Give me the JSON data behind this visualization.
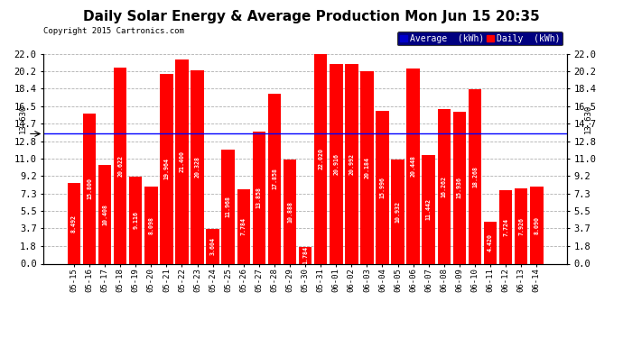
{
  "title": "Daily Solar Energy & Average Production Mon Jun 15 20:35",
  "copyright": "Copyright 2015 Cartronics.com",
  "categories": [
    "05-15",
    "05-16",
    "05-17",
    "05-18",
    "05-19",
    "05-20",
    "05-21",
    "05-22",
    "05-23",
    "05-24",
    "05-25",
    "05-26",
    "05-27",
    "05-28",
    "05-29",
    "05-30",
    "05-31",
    "06-01",
    "06-02",
    "06-03",
    "06-04",
    "06-05",
    "06-06",
    "06-07",
    "06-08",
    "06-09",
    "06-10",
    "06-11",
    "06-12",
    "06-13",
    "06-14"
  ],
  "values": [
    8.492,
    15.8,
    10.408,
    20.622,
    9.116,
    8.098,
    19.964,
    21.4,
    20.328,
    3.604,
    11.968,
    7.784,
    13.858,
    17.858,
    10.888,
    1.784,
    22.02,
    20.916,
    20.992,
    20.184,
    15.996,
    10.932,
    20.448,
    11.442,
    16.262,
    15.936,
    18.268,
    4.42,
    7.724,
    7.926,
    8.09
  ],
  "average": 13.63,
  "bar_color": "#ff0000",
  "avg_line_color": "#0000ff",
  "background_color": "#ffffff",
  "plot_bg_color": "#ffffff",
  "grid_color": "#b0b0b0",
  "title_fontsize": 11,
  "yticks": [
    0.0,
    1.8,
    3.7,
    5.5,
    7.3,
    9.2,
    11.0,
    12.8,
    14.7,
    16.5,
    18.4,
    20.2,
    22.0
  ],
  "legend_avg_color": "#0000cc",
  "legend_daily_color": "#ff0000"
}
